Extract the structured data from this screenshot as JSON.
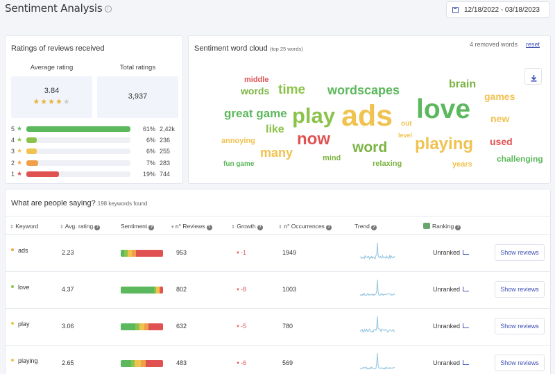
{
  "page": {
    "title": "Sentiment Analysis",
    "date_range": "12/18/2022 - 03/18/2023"
  },
  "ratings": {
    "title": "Ratings of reviews received",
    "avg_label": "Average rating",
    "avg_value": "3.84",
    "avg_stars": 4,
    "total_label": "Total ratings",
    "total_value": "3,937",
    "rows": [
      {
        "stars": "5",
        "percent": 61,
        "pct_label": "61%",
        "count": "2,42k",
        "color": "#5cb85c"
      },
      {
        "stars": "4",
        "percent": 6,
        "pct_label": "6%",
        "count": "236",
        "color": "#8bc34a"
      },
      {
        "stars": "3",
        "percent": 6,
        "pct_label": "6%",
        "count": "255",
        "color": "#f0c24f"
      },
      {
        "stars": "2",
        "percent": 7,
        "pct_label": "7%",
        "count": "283",
        "color": "#f0a04b"
      },
      {
        "stars": "1",
        "percent": 19,
        "pct_label": "19%",
        "count": "744",
        "color": "#e05252"
      }
    ]
  },
  "cloud": {
    "title": "Sentiment word cloud",
    "subtitle": "(top 25 words)",
    "removed": "4 removed words",
    "reset": "reset",
    "words": [
      "middle",
      "words",
      "time",
      "wordscapes",
      "brain",
      "games",
      "great game",
      "like",
      "play",
      "ads",
      "love",
      "new",
      "out",
      "level",
      "annoying",
      "many",
      "now",
      "word",
      "playing",
      "used",
      "mind",
      "fun game",
      "relaxing",
      "years",
      "challenging"
    ]
  },
  "keywords": {
    "title": "What are people saying?",
    "subtitle": "198 keywords found",
    "headers": {
      "keyword": "Keyword",
      "avg": "Avg. rating",
      "sentiment": "Sentiment",
      "reviews": "n° Reviews",
      "growth": "Growth",
      "occurrences": "n° Occurrences",
      "trend": "Trend",
      "ranking": "Ranking"
    },
    "show_label": "Show reviews",
    "rows": [
      {
        "keyword": "ads",
        "dot": "#f0a04b",
        "avg": "2.23",
        "reviews": "953",
        "growth": "-1",
        "occurrences": "1949",
        "ranking": "Unranked",
        "sentiment": [
          8,
          8,
          10,
          10,
          64
        ]
      },
      {
        "keyword": "love",
        "dot": "#8bc34a",
        "avg": "4.37",
        "reviews": "802",
        "growth": "-8",
        "occurrences": "1003",
        "ranking": "Unranked",
        "sentiment": [
          78,
          6,
          6,
          4,
          6
        ]
      },
      {
        "keyword": "play",
        "dot": "#f0c24f",
        "avg": "3.06",
        "reviews": "632",
        "growth": "-5",
        "occurrences": "780",
        "ranking": "Unranked",
        "sentiment": [
          34,
          10,
          12,
          10,
          34
        ]
      },
      {
        "keyword": "playing",
        "dot": "#f0c24f",
        "avg": "2.65",
        "reviews": "483",
        "growth": "-6",
        "occurrences": "569",
        "ranking": "Unranked",
        "sentiment": [
          25,
          8,
          14,
          12,
          41
        ]
      }
    ]
  }
}
